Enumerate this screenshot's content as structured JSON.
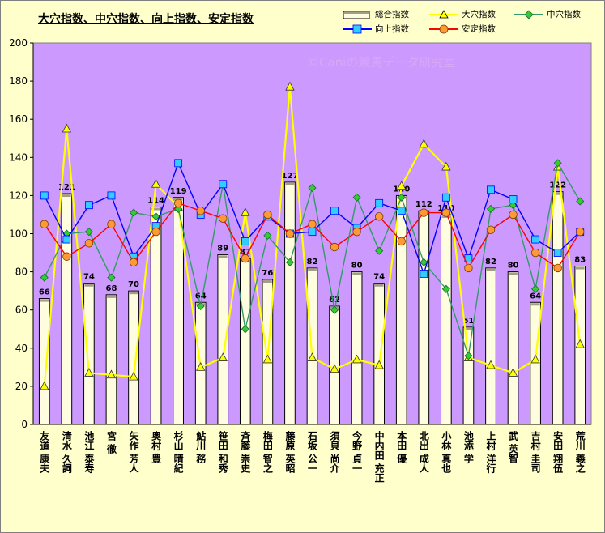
{
  "title": "大穴指数、中穴指数、向上指数、安定指数",
  "watermark": "©Caniの競馬データ研究室",
  "legend": {
    "overall": "総合指数",
    "ooana": "大穴指数",
    "chuana": "中穴指数",
    "koujou": "向上指数",
    "antei": "安定指数"
  },
  "colors": {
    "background": "#ffffcc",
    "plot_background": "#cc99ff",
    "bar_fill": "#fffde0",
    "bar_stroke": "#000000",
    "ooana": "#ffff00",
    "chuana": "#339966",
    "chuana_marker": "#33cc33",
    "koujou": "#0000ff",
    "koujou_marker": "#33ccff",
    "antei": "#ff0000",
    "antei_marker": "#ff9933"
  },
  "chart_data": {
    "type": "bar",
    "title": "大穴指数、中穴指数、向上指数、安定指数",
    "xlabel": "",
    "ylabel": "",
    "ylim": [
      0,
      200
    ],
    "ytick_step": 20,
    "grid": false,
    "legend_position": "top-right",
    "categories": [
      "友道 康夫",
      "清水 久詞",
      "池江 泰寿",
      "宮 徹",
      "矢作 芳人",
      "奥村 豊",
      "杉山 晴紀",
      "鮎川 務",
      "笹田 和秀",
      "斉藤 崇史",
      "梅田 智之",
      "藤原 英昭",
      "石坂 公一",
      "須貝 尚介",
      "今野 貞一",
      "中内田 充正",
      "本田 優",
      "北出 成人",
      "小林 真也",
      "池添 学",
      "上村 洋行",
      "武 英智",
      "吉村 圭司",
      "安田 翔伍",
      "荒川 義之"
    ],
    "series": [
      {
        "name": "総合指数",
        "type": "bar",
        "values": [
          66,
          121,
          74,
          68,
          70,
          114,
          119,
          64,
          89,
          87,
          76,
          127,
          82,
          62,
          80,
          74,
          120,
          112,
          110,
          51,
          82,
          80,
          64,
          122,
          83
        ]
      },
      {
        "name": "大穴指数",
        "type": "line",
        "values": [
          20,
          155,
          27,
          26,
          25,
          126,
          114,
          30,
          35,
          111,
          34,
          177,
          35,
          29,
          34,
          31,
          125,
          147,
          135,
          35,
          31,
          27,
          34,
          135,
          42
        ]
      },
      {
        "name": "中穴指数",
        "type": "line",
        "values": [
          77,
          100,
          101,
          77,
          111,
          109,
          113,
          62,
          126,
          50,
          99,
          85,
          124,
          60,
          119,
          91,
          119,
          85,
          71,
          36,
          113,
          115,
          71,
          137,
          117
        ]
      },
      {
        "name": "向上指数",
        "type": "line",
        "values": [
          120,
          97,
          115,
          120,
          88,
          104,
          137,
          110,
          126,
          96,
          109,
          100,
          101,
          112,
          103,
          116,
          112,
          79,
          119,
          87,
          123,
          118,
          97,
          90,
          101
        ]
      },
      {
        "name": "安定指数",
        "type": "line",
        "values": [
          105,
          88,
          95,
          105,
          85,
          101,
          116,
          112,
          108,
          87,
          110,
          100,
          105,
          93,
          101,
          109,
          96,
          111,
          111,
          82,
          102,
          110,
          90,
          82,
          101
        ]
      }
    ]
  }
}
